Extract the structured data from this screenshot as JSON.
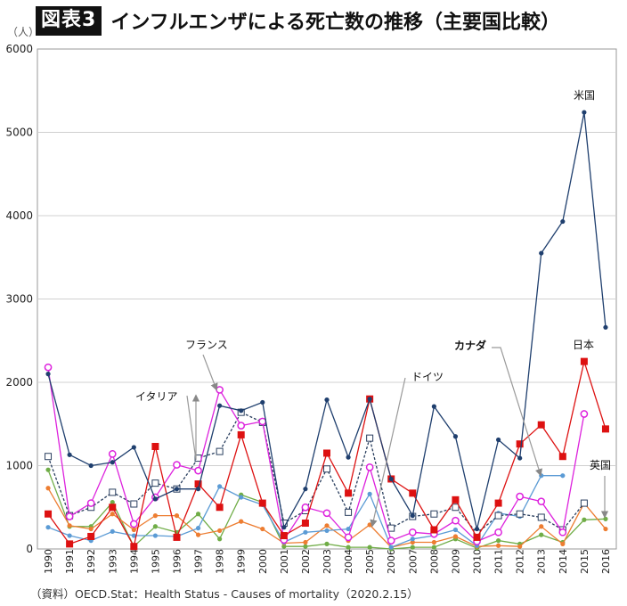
{
  "header": {
    "badge": "図表3",
    "title": "インフルエンザによる死亡数の推移（主要国比較）"
  },
  "source": "（資料）OECD.Stat：Health Status - Causes of mortality（2020.2.15）",
  "chart_data": {
    "type": "line",
    "y_unit": "（人）",
    "ylim": [
      0,
      6000
    ],
    "yticks": [
      0,
      1000,
      2000,
      3000,
      4000,
      5000,
      6000
    ],
    "grid": true,
    "x": [
      "1990",
      "1991",
      "1992",
      "1993",
      "1994",
      "1995",
      "1996",
      "1997",
      "1998",
      "1999",
      "2000",
      "2001",
      "2002",
      "2003",
      "2004",
      "2005",
      "2006",
      "2007",
      "2008",
      "2009",
      "2010",
      "2011",
      "2012",
      "2013",
      "2014",
      "2015",
      "2016"
    ],
    "series": [
      {
        "name": "米国",
        "color": "#1f3f6e",
        "marker": "dot",
        "dash": false,
        "values": [
          2100,
          1130,
          1000,
          1040,
          1220,
          600,
          720,
          720,
          1720,
          1660,
          1760,
          260,
          720,
          1790,
          1100,
          1800,
          840,
          400,
          1710,
          1350,
          240,
          1310,
          1090,
          3550,
          3930,
          5240,
          2660
        ]
      },
      {
        "name": "日本",
        "color": "#dd1111",
        "marker": "square",
        "dash": false,
        "values": [
          420,
          60,
          150,
          500,
          30,
          1230,
          140,
          780,
          500,
          1370,
          550,
          160,
          310,
          1150,
          670,
          1800,
          840,
          670,
          230,
          590,
          140,
          550,
          1260,
          1490,
          1110,
          2250,
          1440
        ]
      },
      {
        "name": "フランス",
        "color": "#dd22dd",
        "marker": "ring",
        "dash": false,
        "values": [
          2180,
          390,
          550,
          1140,
          300,
          620,
          1010,
          940,
          1910,
          1480,
          1530,
          110,
          500,
          430,
          140,
          980,
          100,
          200,
          180,
          340,
          90,
          200,
          630,
          570,
          200,
          1620,
          null
        ]
      },
      {
        "name": "イタリア",
        "color": "#2a3f5f",
        "marker": "opensquare",
        "dash": true,
        "values": [
          1110,
          400,
          500,
          680,
          540,
          790,
          720,
          1090,
          1170,
          1640,
          1520,
          310,
          460,
          960,
          440,
          1330,
          250,
          390,
          420,
          500,
          190,
          400,
          420,
          380,
          230,
          550,
          null
        ]
      },
      {
        "name": "ドイツ",
        "color": "#5b9bd5",
        "marker": "dot",
        "dash": false,
        "values": [
          260,
          160,
          100,
          210,
          160,
          160,
          150,
          250,
          750,
          620,
          530,
          80,
          200,
          220,
          240,
          660,
          20,
          120,
          160,
          230,
          40,
          430,
          390,
          880,
          880,
          null,
          null
        ]
      },
      {
        "name": "カナダ",
        "color": "#ed7d31",
        "marker": "dot",
        "dash": false,
        "values": [
          730,
          280,
          240,
          420,
          230,
          400,
          400,
          170,
          220,
          330,
          240,
          70,
          80,
          280,
          100,
          290,
          20,
          80,
          80,
          150,
          30,
          40,
          30,
          270,
          60,
          550,
          240
        ]
      },
      {
        "name": "英国",
        "color": "#70ad47",
        "marker": "dot",
        "dash": false,
        "values": [
          950,
          270,
          270,
          560,
          30,
          270,
          200,
          420,
          120,
          650,
          560,
          30,
          30,
          60,
          20,
          20,
          0,
          20,
          20,
          120,
          10,
          100,
          60,
          170,
          80,
          350,
          360
        ]
      }
    ],
    "annotations": [
      {
        "text": "米国",
        "series": "米国"
      },
      {
        "text": "日本",
        "series": "日本"
      },
      {
        "text": "フランス",
        "series": "フランス"
      },
      {
        "text": "イタリア",
        "series": "イタリア"
      },
      {
        "text": "ドイツ",
        "series": "ドイツ"
      },
      {
        "text": "カナダ",
        "series": "カナダ"
      },
      {
        "text": "英国",
        "series": "英国"
      }
    ]
  }
}
